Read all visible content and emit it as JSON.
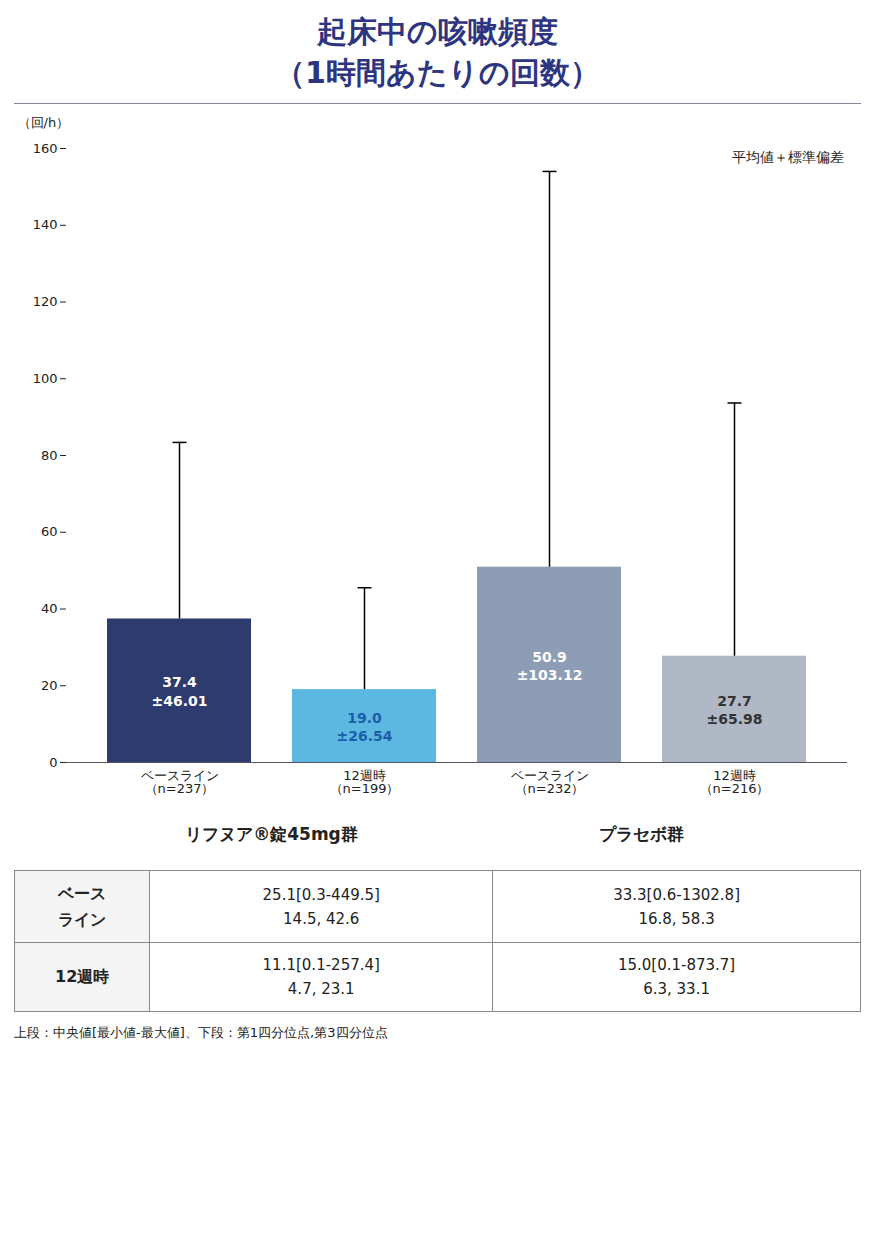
{
  "chart_data": {
    "type": "bar",
    "title": "起床中の咳嗽頻度",
    "subtitle": "（1時間あたりの回数）",
    "title_color": "#2e3580",
    "ylabel": "（回/h）",
    "annotation": "平均値＋標準偏差",
    "categories": [
      "ベースライン\n（n=237）",
      "12週時\n（n=199）",
      "ベースライン\n（n=232）",
      "12週時\n（n=216）"
    ],
    "groups": [
      "リフヌア®錠45mg群",
      "リフヌア®錠45mg群",
      "プラセボ群",
      "プラセボ群"
    ],
    "values": [
      37.4,
      19.0,
      50.9,
      27.7
    ],
    "value_labels": [
      "37.4",
      "19.0",
      "50.9",
      "27.7"
    ],
    "errors": [
      46.01,
      26.54,
      103.12,
      65.98
    ],
    "error_labels": [
      "±46.01",
      "±26.54",
      "±103.12",
      "±65.98"
    ],
    "colors": [
      "#2e3b6e",
      "#5cb8e0",
      "#8c9db5",
      "#b0b8c5"
    ],
    "label_colors": [
      "white",
      "#1a5fa8",
      "white",
      "#333333"
    ],
    "data_labels": true,
    "ylim": [
      0,
      160
    ],
    "yticks": [
      0,
      20,
      40,
      60,
      80,
      100,
      120,
      140,
      160
    ],
    "grid": false,
    "table": {
      "row_labels": [
        "ベース\nライン",
        "12週時"
      ],
      "cells": [
        [
          "25.1[0.3-449.5]\n14.5, 42.6",
          "33.3[0.6-1302.8]\n16.8, 58.3"
        ],
        [
          "11.1[0.1-257.4]\n4.7, 23.1",
          "15.0[0.1-873.7]\n6.3, 33.1"
        ]
      ]
    },
    "footnote": "上段：中央値[最小値-最大値]、下段：第1四分位点,第3四分位点"
  }
}
